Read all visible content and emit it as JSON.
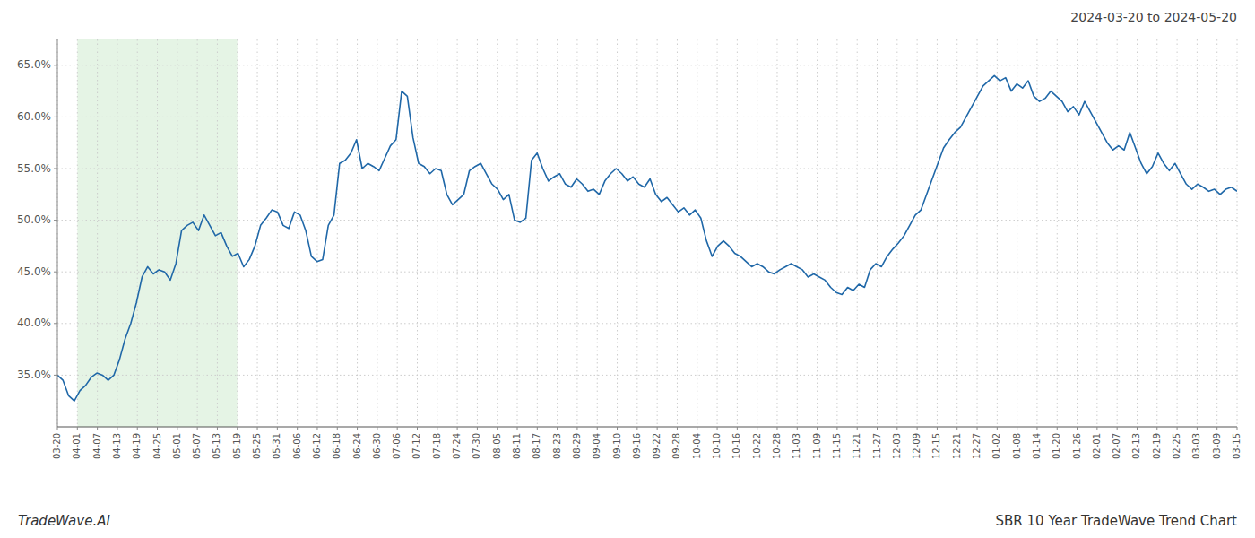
{
  "chart_data": {
    "type": "line",
    "title": "SBR 10 Year TradeWave Trend Chart",
    "subtitle": "2024-03-20 to 2024-05-20",
    "annotations": [
      "TradeWave.AI"
    ],
    "color": "#2068a8",
    "line_style": "solid",
    "grid": true,
    "highlight": {
      "start": "04-01",
      "end": "05-19",
      "color": "#d4ecd4"
    },
    "ylim": [
      30.0,
      67.5
    ],
    "yticks": [
      {
        "value": 35.0,
        "label": "35.0%"
      },
      {
        "value": 40.0,
        "label": "40.0%"
      },
      {
        "value": 45.0,
        "label": "45.0%"
      },
      {
        "value": 50.0,
        "label": "50.0%"
      },
      {
        "value": 55.0,
        "label": "55.0%"
      },
      {
        "value": 60.0,
        "label": "60.0%"
      },
      {
        "value": 65.0,
        "label": "65.0%"
      }
    ],
    "xlim": [
      0,
      209
    ],
    "xticks": [
      {
        "value": 0,
        "label": "03-20"
      },
      {
        "value": 3.5424,
        "label": "04-01"
      },
      {
        "value": 7.0847,
        "label": "04-07"
      },
      {
        "value": 10.6271,
        "label": "04-13"
      },
      {
        "value": 14.1695,
        "label": "04-19"
      },
      {
        "value": 17.7119,
        "label": "04-25"
      },
      {
        "value": 21.2542,
        "label": "05-01"
      },
      {
        "value": 24.7966,
        "label": "05-07"
      },
      {
        "value": 28.339,
        "label": "05-13"
      },
      {
        "value": 31.8814,
        "label": "05-19"
      },
      {
        "value": 35.4237,
        "label": "05-25"
      },
      {
        "value": 38.9661,
        "label": "05-31"
      },
      {
        "value": 42.5085,
        "label": "06-06"
      },
      {
        "value": 46.0508,
        "label": "06-12"
      },
      {
        "value": 49.5932,
        "label": "06-18"
      },
      {
        "value": 53.1356,
        "label": "06-24"
      },
      {
        "value": 56.678,
        "label": "06-30"
      },
      {
        "value": 60.2203,
        "label": "07-06"
      },
      {
        "value": 63.7627,
        "label": "07-12"
      },
      {
        "value": 67.3051,
        "label": "07-18"
      },
      {
        "value": 70.8475,
        "label": "07-24"
      },
      {
        "value": 74.3898,
        "label": "07-30"
      },
      {
        "value": 77.9322,
        "label": "08-05"
      },
      {
        "value": 81.4746,
        "label": "08-11"
      },
      {
        "value": 85.0169,
        "label": "08-17"
      },
      {
        "value": 88.5593,
        "label": "08-23"
      },
      {
        "value": 92.1017,
        "label": "08-29"
      },
      {
        "value": 95.6441,
        "label": "09-04"
      },
      {
        "value": 99.1864,
        "label": "09-10"
      },
      {
        "value": 102.7288,
        "label": "09-16"
      },
      {
        "value": 106.2712,
        "label": "09-22"
      },
      {
        "value": 109.8136,
        "label": "09-28"
      },
      {
        "value": 113.3559,
        "label": "10-04"
      },
      {
        "value": 116.8983,
        "label": "10-10"
      },
      {
        "value": 120.4407,
        "label": "10-16"
      },
      {
        "value": 123.9831,
        "label": "10-22"
      },
      {
        "value": 127.5254,
        "label": "10-28"
      },
      {
        "value": 131.0678,
        "label": "11-03"
      },
      {
        "value": 134.6102,
        "label": "11-09"
      },
      {
        "value": 138.1525,
        "label": "11-15"
      },
      {
        "value": 141.6949,
        "label": "11-21"
      },
      {
        "value": 145.2373,
        "label": "11-27"
      },
      {
        "value": 148.7797,
        "label": "12-03"
      },
      {
        "value": 152.322,
        "label": "12-09"
      },
      {
        "value": 155.8644,
        "label": "12-15"
      },
      {
        "value": 159.4068,
        "label": "12-21"
      },
      {
        "value": 162.9492,
        "label": "12-27"
      },
      {
        "value": 166.4915,
        "label": "01-02"
      },
      {
        "value": 170.0339,
        "label": "01-08"
      },
      {
        "value": 173.5763,
        "label": "01-14"
      },
      {
        "value": 177.1186,
        "label": "01-20"
      },
      {
        "value": 180.661,
        "label": "01-26"
      },
      {
        "value": 184.2034,
        "label": "02-01"
      },
      {
        "value": 187.7458,
        "label": "02-07"
      },
      {
        "value": 191.2881,
        "label": "02-13"
      },
      {
        "value": 194.8305,
        "label": "02-19"
      },
      {
        "value": 198.3729,
        "label": "02-25"
      },
      {
        "value": 201.9153,
        "label": "03-03"
      },
      {
        "value": 205.4576,
        "label": "03-09"
      },
      {
        "value": 209,
        "label": "03-15"
      }
    ],
    "values": [
      35.0,
      34.5,
      33.0,
      32.5,
      33.5,
      34.0,
      34.8,
      35.2,
      35.0,
      34.5,
      35.0,
      36.5,
      38.5,
      40.0,
      42.0,
      44.5,
      45.5,
      44.8,
      45.2,
      45.0,
      44.2,
      45.8,
      49.0,
      49.5,
      49.8,
      49.0,
      50.5,
      49.5,
      48.5,
      48.8,
      47.5,
      46.5,
      46.8,
      45.5,
      46.2,
      47.5,
      49.5,
      50.2,
      51.0,
      50.8,
      49.5,
      49.2,
      50.8,
      50.5,
      49.0,
      46.5,
      46.0,
      46.2,
      49.5,
      50.5,
      55.5,
      55.8,
      56.5,
      57.8,
      55.0,
      55.5,
      55.2,
      54.8,
      56.0,
      57.2,
      57.8,
      62.5,
      62.0,
      58.0,
      55.5,
      55.2,
      54.5,
      55.0,
      54.8,
      52.5,
      51.5,
      52.0,
      52.5,
      54.8,
      55.2,
      55.5,
      54.5,
      53.5,
      53.0,
      52.0,
      52.5,
      50.0,
      49.8,
      50.2,
      55.8,
      56.5,
      55.0,
      53.8,
      54.2,
      54.5,
      53.5,
      53.2,
      54.0,
      53.5,
      52.8,
      53.0,
      52.5,
      53.8,
      54.5,
      55.0,
      54.5,
      53.8,
      54.2,
      53.5,
      53.2,
      54.0,
      52.5,
      51.8,
      52.2,
      51.5,
      50.8,
      51.2,
      50.5,
      51.0,
      50.2,
      48.0,
      46.5,
      47.5,
      48.0,
      47.5,
      46.8,
      46.5,
      46.0,
      45.5,
      45.8,
      45.5,
      45.0,
      44.8,
      45.2,
      45.5,
      45.8,
      45.5,
      45.2,
      44.5,
      44.8,
      44.5,
      44.2,
      43.5,
      43.0,
      42.8,
      43.5,
      43.2,
      43.8,
      43.5,
      45.2,
      45.8,
      45.5,
      46.5,
      47.2,
      47.8,
      48.5,
      49.5,
      50.5,
      51.0,
      52.5,
      54.0,
      55.5,
      57.0,
      57.8,
      58.5,
      59.0,
      60.0,
      61.0,
      62.0,
      63.0,
      63.5,
      64.0,
      63.5,
      63.8,
      62.5,
      63.2,
      62.8,
      63.5,
      62.0,
      61.5,
      61.8,
      62.5,
      62.0,
      61.5,
      60.5,
      61.0,
      60.2,
      61.5,
      60.5,
      59.5,
      58.5,
      57.5,
      56.8,
      57.2,
      56.8,
      58.5,
      57.0,
      55.5,
      54.5,
      55.2,
      56.5,
      55.5,
      54.8,
      55.5,
      54.5,
      53.5,
      53.0,
      53.5,
      53.2,
      52.8,
      53.0,
      52.5,
      53.0,
      53.2,
      52.8
    ]
  }
}
